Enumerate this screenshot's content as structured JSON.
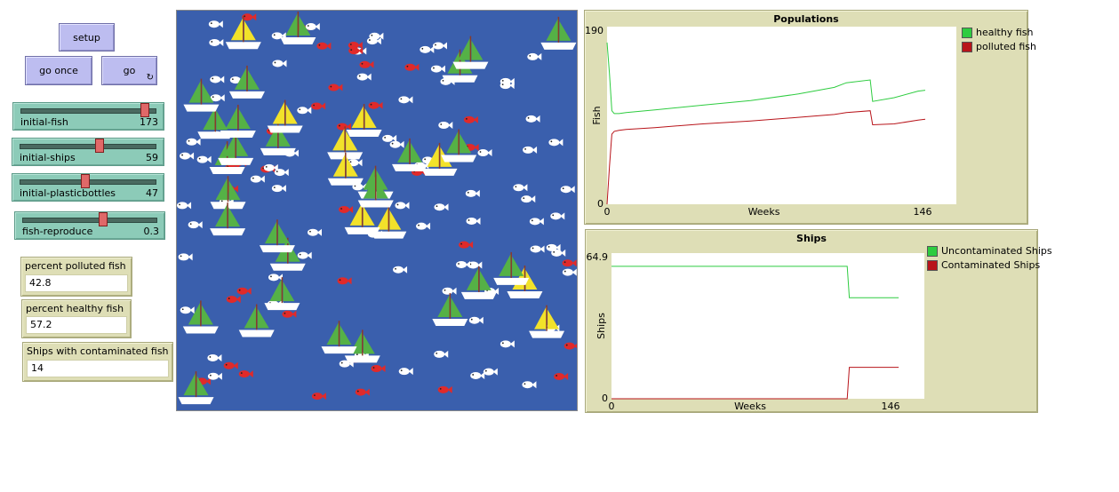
{
  "buttons": {
    "setup": "setup",
    "go_once": "go once",
    "go": "go"
  },
  "sliders": [
    {
      "label": "initial-fish",
      "value": "173",
      "fraction": 0.93
    },
    {
      "label": "initial-ships",
      "value": "59",
      "fraction": 0.58
    },
    {
      "label": "initial-plasticbottles",
      "value": "47",
      "fraction": 0.47
    },
    {
      "label": "fish-reproduce",
      "value": "0.3",
      "fraction": 0.6
    }
  ],
  "monitors": [
    {
      "label": "percent polluted fish",
      "value": "42.8"
    },
    {
      "label": "percent healthy fish",
      "value": "57.2"
    },
    {
      "label": "Ships with contaminated fish",
      "value": "14"
    }
  ],
  "icons": {
    "forever": "forever-loop-icon",
    "fish": "fish-icon",
    "ship": "sailboat-icon"
  },
  "colors": {
    "sea": "#3a5fad",
    "healthy": "#2ecc40",
    "polluted": "#b8141a",
    "sail_green": "#55b146",
    "sail_yellow": "#f2e22a"
  },
  "chart_data": [
    {
      "type": "line",
      "title": "Populations",
      "xlabel": "Weeks",
      "ylabel": "Fish",
      "xlim": [
        0,
        146
      ],
      "ylim": [
        0,
        190
      ],
      "x_ticks": [
        "0",
        "146"
      ],
      "y_ticks": [
        "0",
        "190"
      ],
      "legend": "right",
      "series": [
        {
          "name": "healthy fish",
          "color": "#2ecc40",
          "x": [
            0,
            1,
            2,
            3,
            5,
            8,
            20,
            40,
            60,
            80,
            95,
            100,
            110,
            111,
            120,
            130,
            133
          ],
          "y": [
            173,
            140,
            100,
            97,
            97,
            98,
            101,
            106,
            111,
            118,
            125,
            130,
            133,
            110,
            114,
            121,
            122
          ]
        },
        {
          "name": "polluted fish",
          "color": "#b8141a",
          "x": [
            0,
            1,
            2,
            3,
            5,
            8,
            20,
            40,
            60,
            80,
            95,
            100,
            110,
            111,
            120,
            130,
            133
          ],
          "y": [
            0,
            40,
            75,
            78,
            79,
            80,
            82,
            86,
            89,
            93,
            96,
            98,
            100,
            85,
            86,
            90,
            91
          ]
        }
      ]
    },
    {
      "type": "line",
      "title": "Ships",
      "xlabel": "Weeks",
      "ylabel": "Ships",
      "xlim": [
        0,
        146
      ],
      "ylim": [
        0,
        64.9
      ],
      "x_ticks": [
        "0",
        "146"
      ],
      "y_ticks": [
        "0",
        "64.9"
      ],
      "legend": "right",
      "series": [
        {
          "name": "Uncontaminated Ships",
          "color": "#2ecc40",
          "x": [
            0,
            110,
            111,
            134
          ],
          "y": [
            59,
            59,
            45,
            45
          ]
        },
        {
          "name": "Contaminated Ships",
          "color": "#b8141a",
          "x": [
            0,
            110,
            111,
            134
          ],
          "y": [
            0,
            0,
            14,
            14
          ]
        }
      ]
    }
  ]
}
